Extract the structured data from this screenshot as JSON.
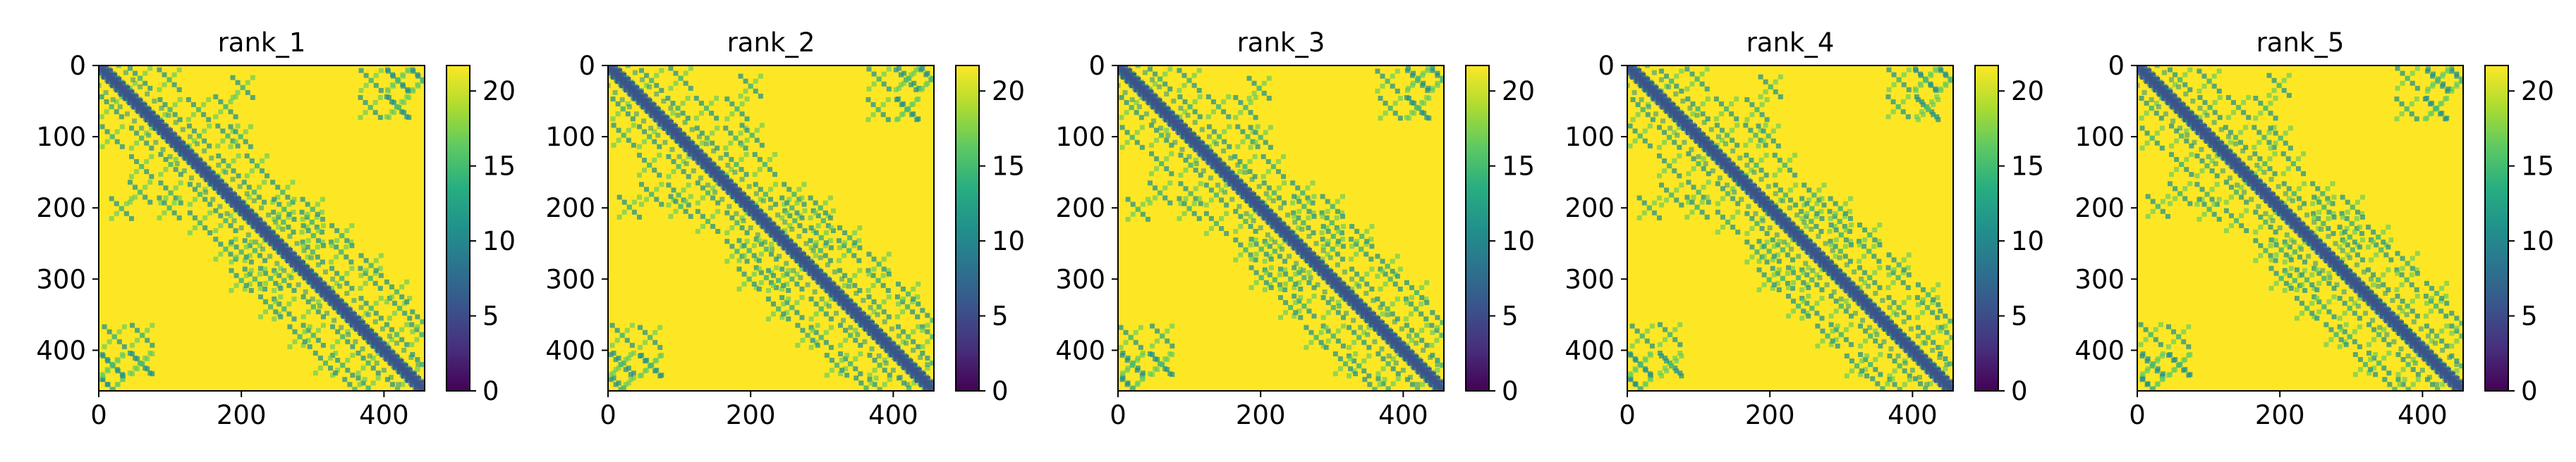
{
  "chart_data": [
    {
      "type": "heatmap",
      "title": "rank_1",
      "xlim": [
        0,
        457
      ],
      "ylim": [
        457,
        0
      ],
      "xticks": [
        0,
        200,
        400
      ],
      "yticks": [
        0,
        100,
        200,
        300,
        400
      ],
      "colorbar": {
        "min": 0,
        "max": 21.7,
        "ticks": [
          0,
          5,
          10,
          15,
          20
        ],
        "cmap": "viridis"
      },
      "description": "Pairwise distance (PAE-style) map, mostly saturated ~21.7 with low values along main diagonal and band-crossing patterns"
    },
    {
      "type": "heatmap",
      "title": "rank_2",
      "xlim": [
        0,
        457
      ],
      "ylim": [
        457,
        0
      ],
      "xticks": [
        0,
        200,
        400
      ],
      "yticks": [
        0,
        100,
        200,
        300,
        400
      ],
      "colorbar": {
        "min": 0,
        "max": 21.7,
        "ticks": [
          0,
          5,
          10,
          15,
          20
        ],
        "cmap": "viridis"
      }
    },
    {
      "type": "heatmap",
      "title": "rank_3",
      "xlim": [
        0,
        457
      ],
      "ylim": [
        457,
        0
      ],
      "xticks": [
        0,
        200,
        400
      ],
      "yticks": [
        0,
        100,
        200,
        300,
        400
      ],
      "colorbar": {
        "min": 0,
        "max": 21.7,
        "ticks": [
          0,
          5,
          10,
          15,
          20
        ],
        "cmap": "viridis"
      }
    },
    {
      "type": "heatmap",
      "title": "rank_4",
      "xlim": [
        0,
        457
      ],
      "ylim": [
        457,
        0
      ],
      "xticks": [
        0,
        200,
        400
      ],
      "yticks": [
        0,
        100,
        200,
        300,
        400
      ],
      "colorbar": {
        "min": 0,
        "max": 21.7,
        "ticks": [
          0,
          5,
          10,
          15,
          20
        ],
        "cmap": "viridis"
      }
    },
    {
      "type": "heatmap",
      "title": "rank_5",
      "xlim": [
        0,
        457
      ],
      "ylim": [
        457,
        0
      ],
      "xticks": [
        0,
        200,
        400
      ],
      "yticks": [
        0,
        100,
        200,
        300,
        400
      ],
      "colorbar": {
        "min": 0,
        "max": 21.7,
        "ticks": [
          0,
          5,
          10,
          15,
          20
        ],
        "cmap": "viridis"
      }
    }
  ],
  "colors": {
    "high": "#fde725",
    "mid_high": "#5ec962",
    "mid": "#21918c",
    "mid_low": "#3b528b",
    "low": "#440154"
  }
}
